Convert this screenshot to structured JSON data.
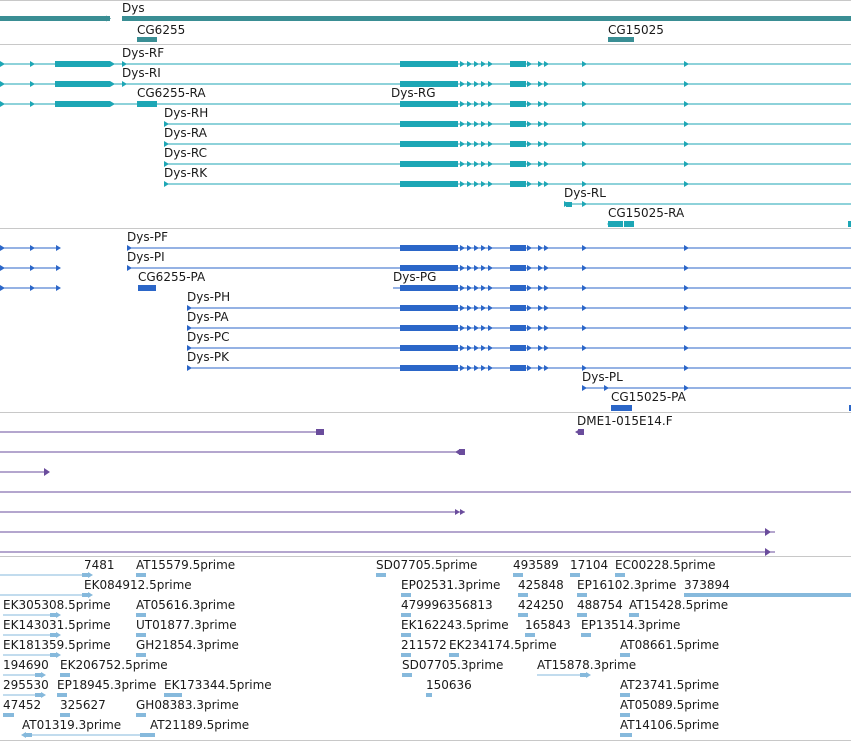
{
  "colors": {
    "gene": "#3a8e94",
    "transcript_a": "#1da6b5",
    "transcript_b": "#2b66c8",
    "cdna": "#6a4c9c",
    "est": "#86b9dc",
    "separator": "#c8c8c8",
    "text": "#1a1a1a"
  },
  "genes": [
    "Dys",
    "CG6255",
    "CG15025"
  ],
  "transcripts_a": [
    "Dys-RF",
    "Dys-RI",
    "CG6255-RA",
    "Dys-RG",
    "Dys-RH",
    "Dys-RA",
    "Dys-RC",
    "Dys-RK",
    "Dys-RL",
    "CG15025-RA"
  ],
  "transcripts_b": [
    "Dys-PF",
    "Dys-PI",
    "CG6255-PA",
    "Dys-PG",
    "Dys-PH",
    "Dys-PA",
    "Dys-PC",
    "Dys-PK",
    "Dys-PL",
    "CG15025-PA"
  ],
  "cdna": [
    "DME1-015E14.F"
  ],
  "ests": [
    "7481",
    "AT15579.5prime",
    "SD07705.5prime",
    "493589",
    "17104",
    "EC00228.5prime",
    "EK084912.5prime",
    "EP02531.3prime",
    "425848",
    "EP16102.3prime",
    "373894",
    "EK305308.5prime",
    "AT05616.3prime",
    "479996356813",
    "424250",
    "488754",
    "AT15428.5prime",
    "EK143031.5prime",
    "UT01877.3prime",
    "EK162243.5prime",
    "165843",
    "EP13514.3prime",
    "EK181359.5prime",
    "GH21854.3prime",
    "211572",
    "EK234174.5prime",
    "AT08661.5prime",
    "194690",
    "EK206752.5prime",
    "SD07705.3prime",
    "AT15878.3prime",
    "295530",
    "EP18945.3prime",
    "EK173344.5prime",
    "150636",
    "AT23741.5prime",
    "47452",
    "325627",
    "GH08383.3prime",
    "AT05089.5prime",
    "AT01319.3prime",
    "AT21189.5prime",
    "AT14106.5prime"
  ]
}
